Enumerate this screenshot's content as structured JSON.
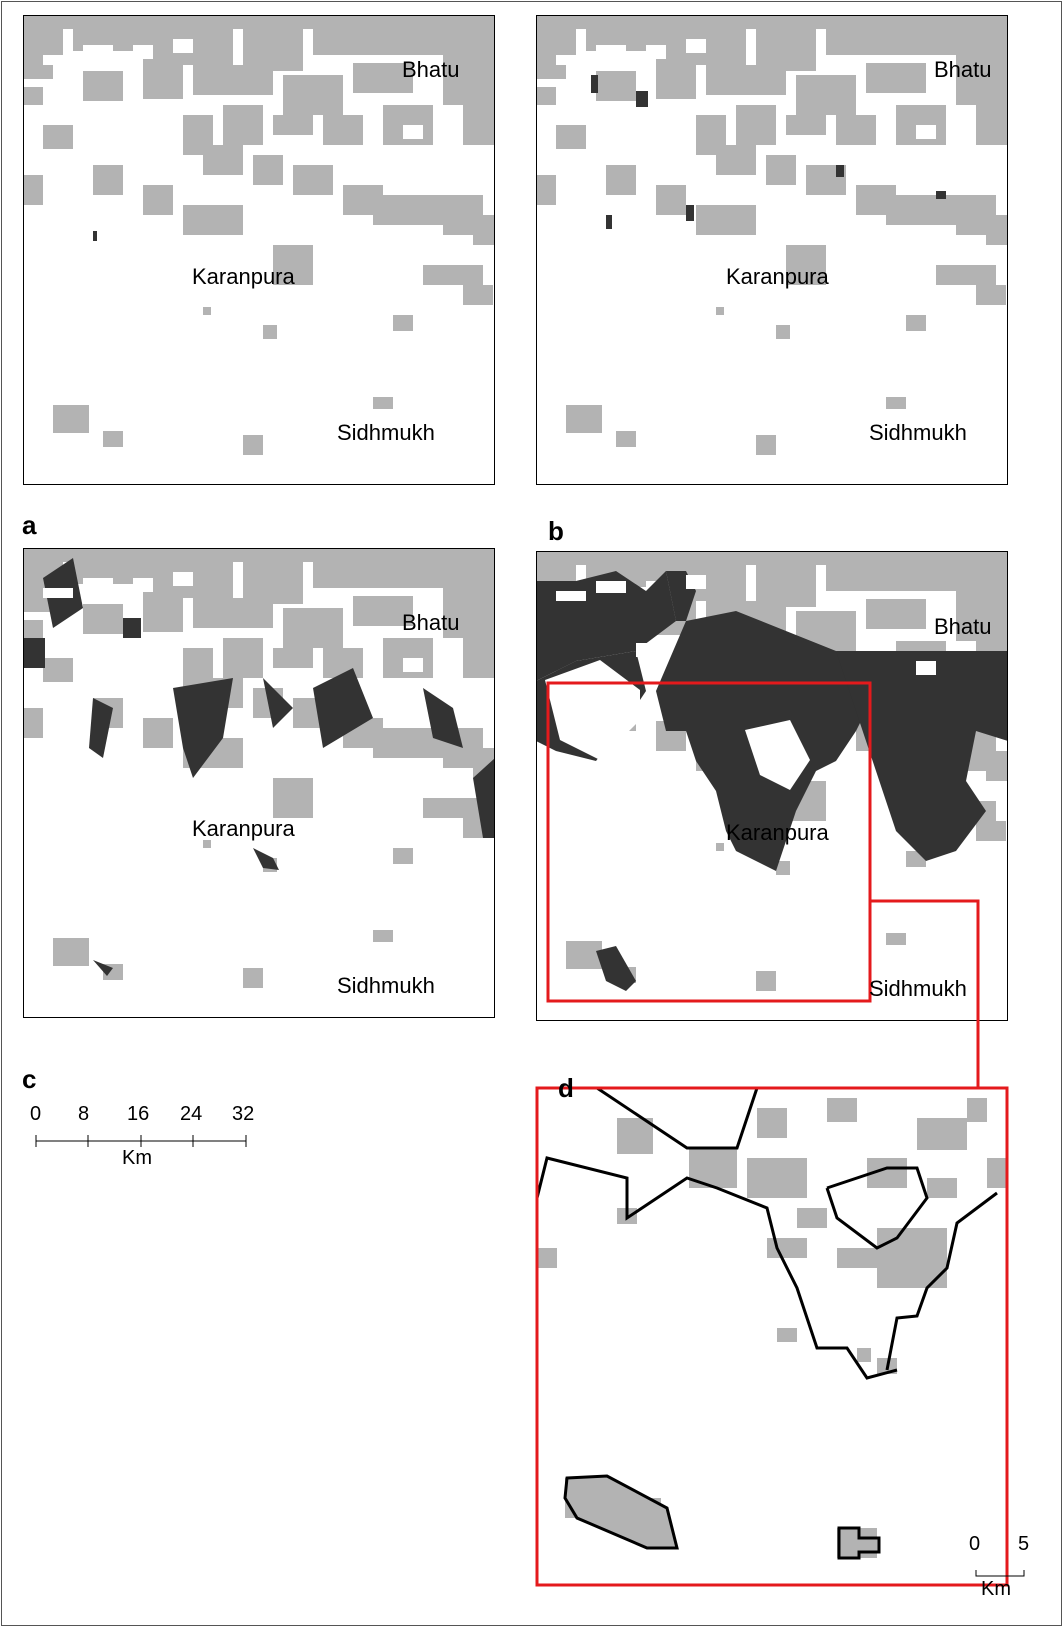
{
  "colors": {
    "urban": "#b3b3b3",
    "new_growth": "#333333",
    "highlight": "#e41a1c",
    "boundary": "#000000",
    "background": "#ffffff"
  },
  "panels": [
    {
      "letter": "a",
      "labels": {
        "bhatu": "Bhatu",
        "karanpura": "Karanpura",
        "sidhmukh": "Sidhmukh"
      }
    },
    {
      "letter": "b",
      "labels": {
        "bhatu": "Bhatu",
        "karanpura": "Karanpura",
        "sidhmukh": "Sidhmukh"
      }
    },
    {
      "letter": "c",
      "labels": {
        "bhatu": "Bhatu",
        "karanpura": "Karanpura",
        "sidhmukh": "Sidhmukh"
      }
    },
    {
      "letter": "d",
      "labels": {
        "bhatu": "Bhatu",
        "karanpura": "Karanpura",
        "sidhmukh": "Sidhmukh"
      }
    }
  ],
  "scalebar_main": {
    "ticks": [
      "0",
      "8",
      "16",
      "24",
      "32"
    ],
    "unit": "Km"
  },
  "scalebar_inset": {
    "ticks": [
      "0",
      "5"
    ],
    "unit": "Km"
  }
}
